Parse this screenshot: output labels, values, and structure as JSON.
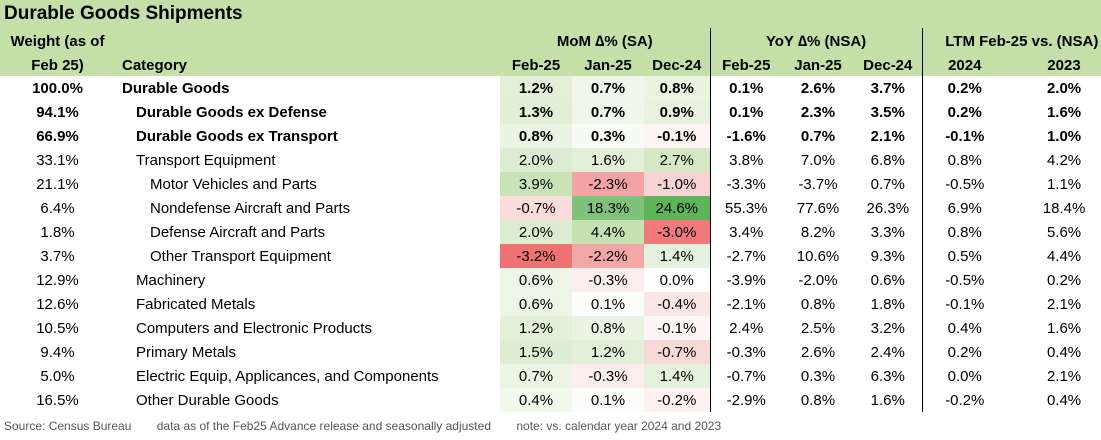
{
  "title": "Durable Goods Shipments",
  "header": {
    "weight_line1": "Weight (as of",
    "weight_line2": "Feb 25)",
    "category": "Category",
    "mom": "MoM ∆% (SA)",
    "yoy": "YoY ∆% (NSA)",
    "ltm": "LTM Feb-25 vs. (NSA)",
    "cols": [
      "Feb-25",
      "Jan-25",
      "Dec-24",
      "Feb-25",
      "Jan-25",
      "Dec-24",
      "2024",
      "2023"
    ]
  },
  "rows": [
    {
      "weight": "100.0%",
      "category": "Durable Goods",
      "indent": 0,
      "bold": true,
      "values": [
        "1.2%",
        "0.7%",
        "0.8%",
        "0.1%",
        "2.6%",
        "3.7%",
        "0.2%",
        "2.0%"
      ],
      "bg": [
        "#e2f0d9",
        "#f0f7ea",
        "#e9f4e1",
        "",
        "",
        "",
        "",
        ""
      ]
    },
    {
      "weight": "94.1%",
      "category": "Durable Goods ex Defense",
      "indent": 1,
      "bold": true,
      "values": [
        "1.3%",
        "0.7%",
        "0.9%",
        "0.1%",
        "2.3%",
        "3.5%",
        "0.2%",
        "1.6%"
      ],
      "bg": [
        "#e0efd6",
        "#f0f7ea",
        "#e7f3df",
        "",
        "",
        "",
        "",
        ""
      ]
    },
    {
      "weight": "66.9%",
      "category": "Durable Goods ex Transport",
      "indent": 1,
      "bold": true,
      "values": [
        "0.8%",
        "0.3%",
        "-0.1%",
        "-1.6%",
        "0.7%",
        "2.1%",
        "-0.1%",
        "1.0%"
      ],
      "bg": [
        "#eaf4e2",
        "#f7fbf4",
        "#fdf4f4",
        "",
        "",
        "",
        "",
        ""
      ]
    },
    {
      "weight": "33.1%",
      "category": "Transport Equipment",
      "indent": 1,
      "bold": false,
      "values": [
        "2.0%",
        "1.6%",
        "2.7%",
        "3.8%",
        "7.0%",
        "6.8%",
        "0.8%",
        "4.2%"
      ],
      "bg": [
        "#dcecd0",
        "#e2f0d9",
        "#d4e8c6",
        "",
        "",
        "",
        "",
        ""
      ]
    },
    {
      "weight": "21.1%",
      "category": "Motor Vehicles and Parts",
      "indent": 2,
      "bold": false,
      "values": [
        "3.9%",
        "-2.3%",
        "-1.0%",
        "-3.3%",
        "-3.7%",
        "0.7%",
        "-0.5%",
        "1.1%"
      ],
      "bg": [
        "#c9e3b7",
        "#f3a3a3",
        "#f8d3d3",
        "",
        "",
        "",
        "",
        ""
      ]
    },
    {
      "weight": "6.4%",
      "category": "Nondefense Aircraft and Parts",
      "indent": 2,
      "bold": false,
      "values": [
        "-0.7%",
        "18.3%",
        "24.6%",
        "55.3%",
        "77.6%",
        "26.3%",
        "6.9%",
        "18.4%"
      ],
      "bg": [
        "#fbdcdc",
        "#7fc27a",
        "#5eb458",
        "",
        "",
        "",
        "",
        ""
      ]
    },
    {
      "weight": "1.8%",
      "category": "Defense Aircraft and Parts",
      "indent": 2,
      "bold": false,
      "values": [
        "2.0%",
        "4.4%",
        "-3.0%",
        "3.4%",
        "8.2%",
        "3.3%",
        "0.8%",
        "5.6%"
      ],
      "bg": [
        "#dcecd0",
        "#c5e1b2",
        "#f07a7a",
        "",
        "",
        "",
        "",
        ""
      ]
    },
    {
      "weight": "3.7%",
      "category": "Other Transport Equipment",
      "indent": 2,
      "bold": false,
      "values": [
        "-3.2%",
        "-2.2%",
        "1.4%",
        "-2.7%",
        "10.6%",
        "9.3%",
        "0.5%",
        "4.4%"
      ],
      "bg": [
        "#ee7272",
        "#f3a6a6",
        "#e4f1dc",
        "",
        "",
        "",
        "",
        ""
      ]
    },
    {
      "weight": "12.9%",
      "category": "Machinery",
      "indent": 1,
      "bold": false,
      "values": [
        "0.6%",
        "-0.3%",
        "0.0%",
        "-3.9%",
        "-2.0%",
        "0.6%",
        "-0.5%",
        "0.2%"
      ],
      "bg": [
        "#edf6e6",
        "#fdeeee",
        "#ffffff",
        "",
        "",
        "",
        "",
        ""
      ]
    },
    {
      "weight": "12.6%",
      "category": "Fabricated Metals",
      "indent": 1,
      "bold": false,
      "values": [
        "0.6%",
        "0.1%",
        "-0.4%",
        "-2.1%",
        "0.8%",
        "1.8%",
        "-0.1%",
        "2.1%"
      ],
      "bg": [
        "#edf6e6",
        "#fbfdfa",
        "#fbe6e6",
        "",
        "",
        "",
        "",
        ""
      ]
    },
    {
      "weight": "10.5%",
      "category": "Computers and Electronic Products",
      "indent": 1,
      "bold": false,
      "values": [
        "1.2%",
        "0.8%",
        "-0.1%",
        "2.4%",
        "2.5%",
        "3.2%",
        "0.4%",
        "1.6%"
      ],
      "bg": [
        "#e2f0d9",
        "#eaf4e2",
        "#fdf6f6",
        "",
        "",
        "",
        "",
        ""
      ]
    },
    {
      "weight": "9.4%",
      "category": "Primary Metals",
      "indent": 1,
      "bold": false,
      "values": [
        "1.5%",
        "1.2%",
        "-0.7%",
        "-0.3%",
        "2.6%",
        "2.4%",
        "0.2%",
        "0.4%"
      ],
      "bg": [
        "#ddedd2",
        "#e2f0d9",
        "#f9d8d8",
        "",
        "",
        "",
        "",
        ""
      ]
    },
    {
      "weight": "5.0%",
      "category": "Electric Equip, Applicances, and Components",
      "indent": 1,
      "bold": false,
      "values": [
        "0.7%",
        "-0.3%",
        "1.4%",
        "-0.7%",
        "0.3%",
        "6.3%",
        "0.0%",
        "2.1%"
      ],
      "bg": [
        "#ecf5e4",
        "#fdeeee",
        "#e4f1dc",
        "",
        "",
        "",
        "",
        ""
      ]
    },
    {
      "weight": "16.5%",
      "category": "Other Durable Goods",
      "indent": 1,
      "bold": false,
      "values": [
        "0.4%",
        "0.1%",
        "-0.2%",
        "-2.9%",
        "0.8%",
        "1.6%",
        "-0.2%",
        "0.4%"
      ],
      "bg": [
        "#f1f8ec",
        "#fbfdfa",
        "#fdf1f1",
        "",
        "",
        "",
        "",
        ""
      ]
    }
  ],
  "footer": {
    "source": "Source: Census Bureau",
    "note1": "data as of the Feb25 Advance release and seasonally adjusted",
    "note2": "note: vs. calendar year 2024 and 2023"
  }
}
